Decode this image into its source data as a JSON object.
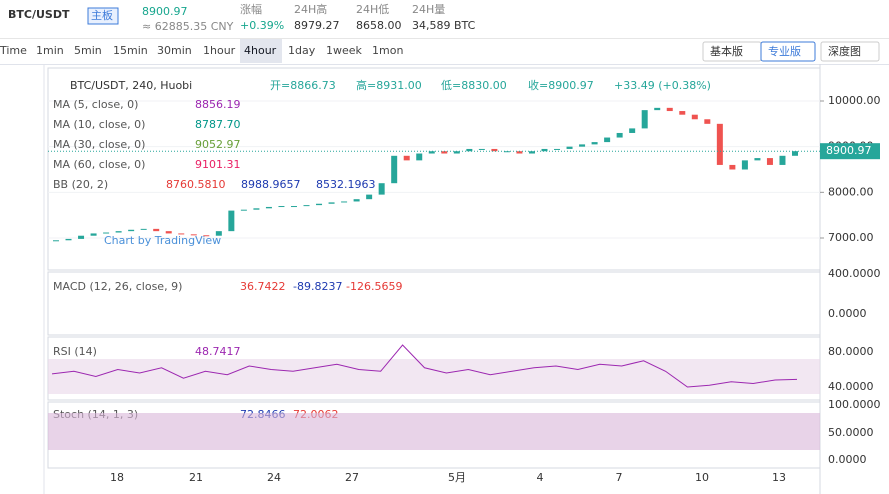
{
  "header": {
    "pair": "BTC/USDT",
    "badge": "主板",
    "price": "8900.97",
    "cny": "≈ 62885.35 CNY",
    "stats": [
      {
        "label": "涨幅",
        "value": "+0.39%"
      },
      {
        "label": "24H高",
        "value": "8979.27"
      },
      {
        "label": "24H低",
        "value": "8658.00"
      },
      {
        "label": "24H量",
        "value": "34,589 BTC"
      }
    ]
  },
  "toolbar": {
    "intervals": [
      "Time",
      "1min",
      "5min",
      "15min",
      "30min",
      "1hour",
      "4hour",
      "1day",
      "1week",
      "1mon"
    ],
    "active": "4hour",
    "views": [
      "基本版",
      "专业版",
      "深度图"
    ],
    "active_view": "专业版"
  },
  "legend": {
    "symbol": "BTC/USDT, 240, Huobi",
    "ohlc": [
      "开=8866.73",
      "高=8931.00",
      "低=8830.00",
      "收=8900.97"
    ],
    "change": "+33.49 (+0.38%)",
    "indicators": [
      {
        "name": "MA (5, close, 0)",
        "values": [
          "8856.19"
        ],
        "colors": [
          "#9c27b0"
        ]
      },
      {
        "name": "MA (10, close, 0)",
        "values": [
          "8787.70"
        ],
        "colors": [
          "#009688"
        ]
      },
      {
        "name": "MA (30, close, 0)",
        "values": [
          "9052.97"
        ],
        "colors": [
          "#689f38"
        ]
      },
      {
        "name": "MA (60, close, 0)",
        "values": [
          "9101.31"
        ],
        "colors": [
          "#e91e63"
        ]
      },
      {
        "name": "BB (20, 2)",
        "values": [
          "8760.5810",
          "8988.9657",
          "8532.1963"
        ],
        "colors": [
          "#e53935",
          "#1e3ab0",
          "#1e3ab0"
        ]
      }
    ]
  },
  "macd": {
    "name": "MACD (12, 26, close, 9)",
    "values": [
      "36.7422",
      "-89.8237",
      "-126.5659"
    ],
    "colors": [
      "#e53935",
      "#1e3ab0",
      "#e53935"
    ]
  },
  "rsi": {
    "name": "RSI (14)",
    "values": [
      "48.7417"
    ],
    "colors": [
      "#9c27b0"
    ],
    "series": [
      55,
      58,
      52,
      60,
      56,
      62,
      50,
      58,
      54,
      64,
      60,
      58,
      62,
      66,
      60,
      58,
      88,
      62,
      56,
      60,
      54,
      58,
      62,
      64,
      60,
      66,
      64,
      70,
      58,
      40,
      42,
      46,
      44,
      48,
      48.7417
    ]
  },
  "stoch": {
    "name": "Stoch (14, 1, 3)",
    "values": [
      "72.8466",
      "72.0062"
    ],
    "colors": [
      "#1e3ab0",
      "#e53935"
    ]
  },
  "watermark": "Chart by TradingView",
  "price_axis": [
    {
      "value": 10000,
      "label": "10000.00"
    },
    {
      "value": 9000,
      "label": "9000.00"
    },
    {
      "value": 8000,
      "label": "8000.00"
    },
    {
      "value": 7000,
      "label": "7000.00"
    }
  ],
  "last_price": {
    "value": 8900.97,
    "label": "8900.97"
  },
  "macd_axis": [
    "400.0000",
    "0.0000"
  ],
  "rsi_axis": [
    "80.0000",
    "40.0000"
  ],
  "stoch_axis": [
    "100.0000",
    "50.0000",
    "0.0000"
  ],
  "dates": [
    "18",
    "21",
    "24",
    "27",
    "5月",
    "4",
    "7",
    "10",
    "13"
  ],
  "closes": [
    6950,
    6980,
    7050,
    7100,
    7120,
    7150,
    7180,
    7200,
    7150,
    7100,
    7080,
    7060,
    7050,
    7150,
    7600,
    7620,
    7650,
    7680,
    7700,
    7700,
    7720,
    7750,
    7780,
    7800,
    7850,
    7950,
    8200,
    8800,
    8700,
    8850,
    8900,
    8850,
    8900,
    8950,
    8950,
    8900,
    8900,
    8850,
    8900,
    8950,
    8950,
    9000,
    9050,
    9100,
    9200,
    9300,
    9400,
    9800,
    9850,
    9780,
    9700,
    9600,
    9500,
    8600,
    8500,
    8700,
    8750,
    8600,
    8800,
    8900.97
  ]
}
